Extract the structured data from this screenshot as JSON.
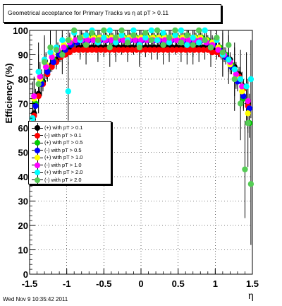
{
  "chart_data": {
    "type": "scatter",
    "title": "Geometrical acceptance for Primary Tracks vs   η at pT > 0.11",
    "xlabel": "η",
    "ylabel": "Efficiency (%)",
    "xlim": [
      -1.5,
      1.5
    ],
    "ylim": [
      0,
      100
    ],
    "x_ticks": [
      "-1.5",
      "-1",
      "-0.5",
      "0",
      "0.5",
      "1",
      "1.5"
    ],
    "y_ticks": [
      "0",
      "10",
      "20",
      "30",
      "40",
      "50",
      "60",
      "70",
      "80",
      "90",
      "100"
    ],
    "grid": true,
    "legend_position": "left-middle",
    "series": [
      {
        "name": "(+) with pT > 0.1",
        "color": "#000000",
        "x": [
          -1.44,
          -1.38,
          -1.32,
          -1.26,
          -1.2,
          -1.14,
          -1.08,
          -1.02,
          -0.96,
          -0.9,
          -0.84,
          -0.78,
          -0.72,
          -0.66,
          -0.6,
          -0.54,
          -0.48,
          -0.42,
          -0.36,
          -0.3,
          -0.24,
          -0.18,
          -0.12,
          -0.06,
          0.0,
          0.06,
          0.12,
          0.18,
          0.24,
          0.3,
          0.36,
          0.42,
          0.48,
          0.54,
          0.6,
          0.66,
          0.72,
          0.78,
          0.84,
          0.9,
          0.96,
          1.02,
          1.08,
          1.14,
          1.2,
          1.26,
          1.32,
          1.38,
          1.44
        ],
        "y": [
          66,
          74,
          79,
          83,
          86,
          88,
          90,
          91,
          92,
          92,
          93,
          93,
          93,
          93,
          93,
          93,
          93,
          93,
          93,
          93,
          93,
          93,
          93,
          93,
          93,
          93,
          93,
          93,
          93,
          93,
          93,
          93,
          93,
          93,
          93,
          93,
          93,
          93,
          93,
          93,
          92,
          92,
          91,
          90,
          88,
          85,
          82,
          77,
          70
        ],
        "err": [
          4,
          3,
          3,
          2,
          2,
          2,
          2,
          1,
          1,
          1,
          1,
          1,
          1,
          1,
          1,
          1,
          1,
          1,
          1,
          1,
          1,
          1,
          1,
          1,
          1,
          1,
          1,
          1,
          1,
          1,
          1,
          1,
          1,
          1,
          1,
          1,
          1,
          1,
          1,
          1,
          1,
          1,
          2,
          2,
          2,
          2,
          3,
          3,
          4
        ]
      },
      {
        "name": "(-) with pT > 0.1",
        "color": "#ff0000",
        "x": [
          -1.44,
          -1.38,
          -1.32,
          -1.26,
          -1.2,
          -1.14,
          -1.08,
          -1.02,
          -0.96,
          -0.9,
          -0.84,
          -0.78,
          -0.72,
          -0.66,
          -0.6,
          -0.54,
          -0.48,
          -0.42,
          -0.36,
          -0.3,
          -0.24,
          -0.18,
          -0.12,
          -0.06,
          0.0,
          0.06,
          0.12,
          0.18,
          0.24,
          0.3,
          0.36,
          0.42,
          0.48,
          0.54,
          0.6,
          0.66,
          0.72,
          0.78,
          0.84,
          0.9,
          0.96,
          1.02,
          1.08,
          1.14,
          1.2,
          1.26,
          1.32,
          1.38,
          1.44
        ],
        "y": [
          65,
          73,
          78,
          82,
          85,
          87,
          89,
          90,
          91,
          92,
          92,
          92,
          92,
          92,
          92,
          92,
          92,
          92,
          92,
          92,
          92,
          92,
          92,
          92,
          92,
          92,
          92,
          92,
          92,
          92,
          92,
          92,
          92,
          92,
          92,
          92,
          92,
          92,
          92,
          92,
          91,
          91,
          90,
          89,
          87,
          84,
          81,
          76,
          69
        ],
        "err": [
          4,
          3,
          3,
          2,
          2,
          2,
          2,
          1,
          1,
          1,
          1,
          1,
          1,
          1,
          1,
          1,
          1,
          1,
          1,
          1,
          1,
          1,
          1,
          1,
          1,
          1,
          1,
          1,
          1,
          1,
          1,
          1,
          1,
          1,
          1,
          1,
          1,
          1,
          1,
          1,
          1,
          1,
          2,
          2,
          2,
          2,
          3,
          3,
          4
        ]
      },
      {
        "name": "(+) with pT > 0.5",
        "color": "#00cc00",
        "x": [
          -1.42,
          -1.34,
          -1.26,
          -1.18,
          -1.1,
          -1.02,
          -0.94,
          -0.86,
          -0.78,
          -0.7,
          -0.62,
          -0.54,
          -0.46,
          -0.38,
          -0.3,
          -0.22,
          -0.14,
          -0.06,
          0.02,
          0.1,
          0.18,
          0.26,
          0.34,
          0.42,
          0.5,
          0.58,
          0.66,
          0.74,
          0.82,
          0.9,
          0.98,
          1.06,
          1.14,
          1.22,
          1.3,
          1.38,
          1.46
        ],
        "y": [
          70,
          79,
          84,
          88,
          91,
          93,
          95,
          96,
          97,
          97,
          97,
          97,
          97,
          97,
          97,
          97,
          97,
          97,
          97,
          97,
          97,
          97,
          97,
          97,
          97,
          97,
          97,
          97,
          97,
          96,
          95,
          93,
          90,
          86,
          80,
          72,
          62
        ],
        "err": [
          6,
          5,
          4,
          3,
          3,
          2,
          2,
          2,
          2,
          2,
          2,
          2,
          2,
          2,
          2,
          2,
          2,
          2,
          2,
          2,
          2,
          2,
          2,
          2,
          2,
          2,
          2,
          2,
          2,
          2,
          2,
          2,
          3,
          3,
          4,
          5,
          6
        ]
      },
      {
        "name": "(-) with pT > 0.5",
        "color": "#0000ff",
        "x": [
          -1.42,
          -1.34,
          -1.26,
          -1.18,
          -1.1,
          -1.02,
          -0.94,
          -0.86,
          -0.78,
          -0.7,
          -0.62,
          -0.54,
          -0.46,
          -0.38,
          -0.3,
          -0.22,
          -0.14,
          -0.06,
          0.02,
          0.1,
          0.18,
          0.26,
          0.34,
          0.42,
          0.5,
          0.58,
          0.66,
          0.74,
          0.82,
          0.9,
          0.98,
          1.06,
          1.14,
          1.22,
          1.3,
          1.38,
          1.46
        ],
        "y": [
          69,
          78,
          83,
          87,
          90,
          92,
          94,
          95,
          96,
          96,
          96,
          96,
          96,
          96,
          96,
          96,
          96,
          96,
          96,
          96,
          96,
          96,
          96,
          96,
          96,
          96,
          96,
          96,
          96,
          95,
          94,
          92,
          89,
          85,
          79,
          73,
          68
        ],
        "err": [
          6,
          5,
          4,
          3,
          3,
          2,
          2,
          2,
          2,
          2,
          2,
          2,
          2,
          2,
          2,
          2,
          2,
          2,
          2,
          2,
          2,
          2,
          2,
          2,
          2,
          2,
          2,
          2,
          2,
          2,
          2,
          2,
          3,
          3,
          4,
          5,
          6
        ]
      },
      {
        "name": "(+) with pT > 1.0",
        "color": "#ffff00",
        "x": [
          -1.44,
          -1.36,
          -1.28,
          -1.2,
          -1.12,
          -1.04,
          -0.96,
          -0.88,
          -0.8,
          -0.72,
          -0.64,
          -0.56,
          -0.48,
          -0.4,
          -0.32,
          -0.24,
          -0.16,
          -0.08,
          0.0,
          0.08,
          0.16,
          0.24,
          0.32,
          0.4,
          0.48,
          0.56,
          0.64,
          0.72,
          0.8,
          0.88,
          0.96,
          1.04,
          1.12,
          1.2,
          1.28,
          1.36,
          1.44
        ],
        "y": [
          72,
          80,
          86,
          90,
          92,
          94,
          96,
          96,
          97,
          97,
          97,
          97,
          97,
          97,
          97,
          97,
          97,
          97,
          97,
          97,
          97,
          97,
          97,
          97,
          97,
          97,
          97,
          97,
          97,
          96,
          95,
          93,
          90,
          86,
          81,
          75,
          66
        ],
        "err": [
          8,
          6,
          5,
          4,
          3,
          3,
          3,
          3,
          3,
          3,
          3,
          3,
          3,
          3,
          3,
          3,
          3,
          3,
          3,
          3,
          3,
          3,
          3,
          3,
          3,
          3,
          3,
          3,
          3,
          3,
          3,
          3,
          3,
          4,
          5,
          6,
          8
        ]
      },
      {
        "name": "(-) with pT > 1.0",
        "color": "#ff00ff",
        "x": [
          -1.44,
          -1.36,
          -1.28,
          -1.2,
          -1.12,
          -1.04,
          -0.96,
          -0.88,
          -0.8,
          -0.72,
          -0.64,
          -0.56,
          -0.48,
          -0.4,
          -0.32,
          -0.24,
          -0.16,
          -0.08,
          0.0,
          0.08,
          0.16,
          0.24,
          0.32,
          0.4,
          0.48,
          0.56,
          0.64,
          0.72,
          0.8,
          0.88,
          0.96,
          1.04,
          1.12,
          1.2,
          1.28,
          1.36,
          1.44
        ],
        "y": [
          73,
          81,
          85,
          89,
          92,
          93,
          95,
          96,
          96,
          96,
          96,
          96,
          96,
          96,
          96,
          96,
          96,
          96,
          96,
          96,
          96,
          96,
          96,
          96,
          96,
          96,
          96,
          96,
          96,
          95,
          94,
          92,
          90,
          87,
          82,
          77,
          71
        ],
        "err": [
          8,
          6,
          5,
          4,
          3,
          3,
          3,
          3,
          3,
          3,
          3,
          3,
          3,
          3,
          3,
          3,
          3,
          3,
          3,
          3,
          3,
          3,
          3,
          3,
          3,
          3,
          3,
          3,
          3,
          3,
          3,
          3,
          3,
          4,
          5,
          6,
          8
        ]
      },
      {
        "name": "(+) with pT > 2.0",
        "color": "#00ffff",
        "x": [
          -1.46,
          -1.38,
          -1.3,
          -1.22,
          -1.14,
          -1.06,
          -0.98,
          -0.9,
          -0.82,
          -0.74,
          -0.66,
          -0.58,
          -0.5,
          -0.42,
          -0.34,
          -0.26,
          -0.18,
          -0.1,
          -0.02,
          0.06,
          0.14,
          0.22,
          0.3,
          0.38,
          0.46,
          0.54,
          0.62,
          0.7,
          0.78,
          0.86,
          0.94,
          1.02,
          1.1,
          1.18,
          1.26,
          1.34,
          1.42,
          1.48
        ],
        "y": [
          64,
          83,
          88,
          91,
          93,
          96,
          75,
          99,
          96,
          98,
          100,
          95,
          97,
          100,
          95,
          98,
          96,
          100,
          94,
          97,
          100,
          96,
          99,
          95,
          98,
          100,
          94,
          97,
          95,
          100,
          93,
          96,
          90,
          88,
          84,
          80,
          77,
          80
        ],
        "err": [
          15,
          12,
          10,
          8,
          8,
          8,
          12,
          8,
          8,
          8,
          8,
          8,
          8,
          8,
          8,
          8,
          8,
          8,
          8,
          8,
          8,
          8,
          8,
          8,
          8,
          8,
          8,
          8,
          8,
          8,
          8,
          8,
          9,
          10,
          11,
          12,
          14,
          16
        ]
      },
      {
        "name": "(-) with pT > 2.0",
        "color": "#55cc55",
        "x": [
          -1.46,
          -1.38,
          -1.3,
          -1.22,
          -1.14,
          -1.06,
          -0.98,
          -0.9,
          -0.82,
          -0.74,
          -0.66,
          -0.58,
          -0.5,
          -0.42,
          -0.34,
          -0.26,
          -0.18,
          -0.1,
          -0.02,
          0.06,
          0.14,
          0.22,
          0.3,
          0.38,
          0.46,
          0.54,
          0.62,
          0.7,
          0.78,
          0.86,
          0.94,
          1.02,
          1.1,
          1.18,
          1.26,
          1.34,
          1.4,
          1.44,
          1.48
        ],
        "y": [
          60,
          78,
          87,
          93,
          92,
          90,
          96,
          100,
          97,
          94,
          99,
          96,
          100,
          93,
          97,
          100,
          95,
          98,
          93,
          99,
          96,
          100,
          94,
          97,
          100,
          95,
          98,
          94,
          100,
          96,
          93,
          97,
          91,
          94,
          80,
          70,
          43,
          62,
          37
        ],
        "err": [
          15,
          12,
          10,
          8,
          8,
          8,
          10,
          8,
          8,
          8,
          8,
          8,
          8,
          8,
          8,
          8,
          8,
          8,
          8,
          8,
          8,
          8,
          8,
          8,
          8,
          8,
          8,
          8,
          8,
          8,
          8,
          8,
          10,
          11,
          13,
          15,
          20,
          18,
          25
        ]
      }
    ]
  },
  "footer": "Wed Nov  9 10:35:42 2011"
}
